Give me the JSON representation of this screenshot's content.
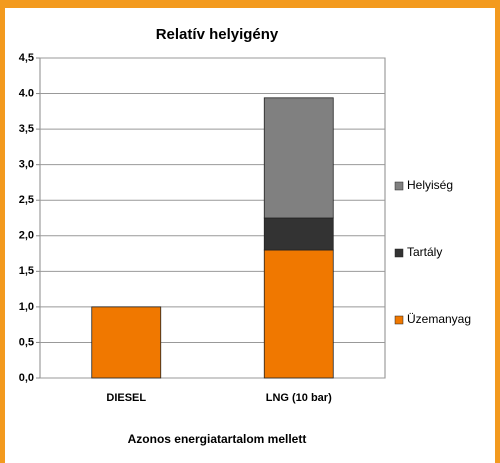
{
  "chart_data": {
    "type": "stacked_bar",
    "title": "Relatív helyigény",
    "x_label": "Azonos energiatartalom mellett",
    "categories": [
      "DIESEL",
      "LNG (10 bar)"
    ],
    "series": [
      {
        "name": "Üzemanyag",
        "color": "#f07800",
        "values": [
          1.0,
          1.8
        ]
      },
      {
        "name": "Tartály",
        "color": "#333333",
        "values": [
          0,
          0.45
        ]
      },
      {
        "name": "Helyiség",
        "color": "#808080",
        "values": [
          0,
          1.69
        ]
      }
    ],
    "ylim": [
      0,
      4.5
    ],
    "yticks": [
      {
        "value": 0,
        "label": "0,0"
      },
      {
        "value": 0.5,
        "label": "0,5"
      },
      {
        "value": 1,
        "label": "1,0"
      },
      {
        "value": 1.5,
        "label": "1,5"
      },
      {
        "value": 2,
        "label": "2,0"
      },
      {
        "value": 2.5,
        "label": "2,5"
      },
      {
        "value": 3,
        "label": "3,0"
      },
      {
        "value": 3.5,
        "label": "3,5"
      },
      {
        "value": 4,
        "label": "4.0"
      },
      {
        "value": 4.5,
        "label": "4,5"
      }
    ],
    "grid": true
  }
}
